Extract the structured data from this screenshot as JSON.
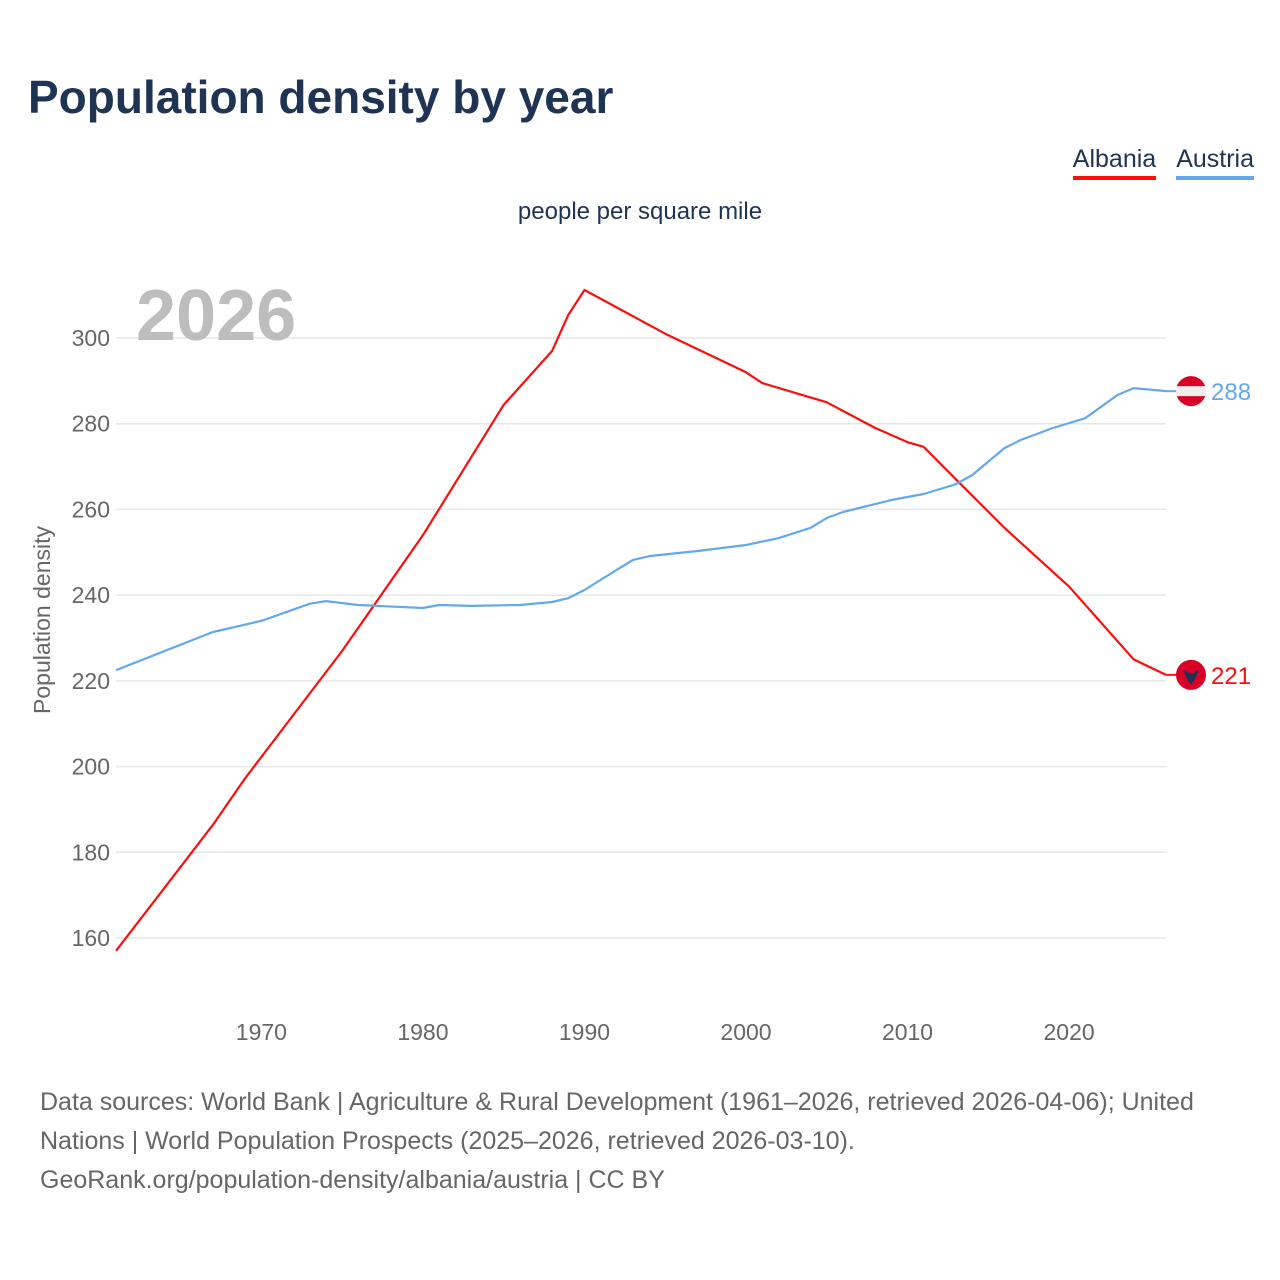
{
  "title": "Population density by year",
  "subtitle": "people per square mile",
  "legend": [
    {
      "label": "Albania",
      "color": "#ff0d0d"
    },
    {
      "label": "Austria",
      "color": "#64a8ec"
    }
  ],
  "year_watermark": "2026",
  "source_line1": "Data sources: World Bank | Agriculture & Rural Development (1961–2026, retrieved 2026-04-06); United Nations | World Population Prospects (2025–2026, retrieved 2026-03-10).",
  "source_line2": "GeoRank.org/population-density/albania/austria | CC BY",
  "chart_data": {
    "type": "line",
    "title": "Population density by year",
    "xlabel": "",
    "ylabel": "Population density",
    "xlim": [
      1961,
      2026
    ],
    "ylim": [
      150,
      315
    ],
    "xticks": [
      1970,
      1980,
      1990,
      2000,
      2010,
      2020
    ],
    "yticks": [
      160,
      180,
      200,
      220,
      240,
      260,
      280,
      300
    ],
    "grid": true,
    "legend_placement": "top-right",
    "series": [
      {
        "name": "Albania",
        "color": "#ff0d0d",
        "end_label": "221",
        "x": [
          1961,
          1967,
          1969,
          1975,
          1980,
          1985,
          1988,
          1989,
          1990,
          1995,
          2000,
          2001,
          2005,
          2008,
          2010,
          2011,
          2013,
          2016,
          2020,
          2024,
          2026
        ],
        "y": [
          157,
          186.4,
          197.3,
          227,
          254,
          284.4,
          297,
          305.4,
          311.2,
          301,
          292,
          289.5,
          285,
          279,
          275.7,
          274.6,
          267,
          255.7,
          242,
          225,
          221.4
        ]
      },
      {
        "name": "Austria",
        "color": "#64a8ec",
        "end_label": "288",
        "x": [
          1961,
          1967,
          1970,
          1973,
          1974,
          1976,
          1980,
          1981,
          1983,
          1986,
          1988,
          1989,
          1990,
          1992,
          1993,
          1994,
          1997,
          2000,
          2002,
          2004,
          2005,
          2006,
          2009,
          2011,
          2013,
          2014,
          2016,
          2017,
          2019,
          2021,
          2023,
          2024,
          2026
        ],
        "y": [
          222.5,
          231.4,
          234,
          238,
          238.6,
          237.7,
          237,
          237.7,
          237.5,
          237.7,
          238.4,
          239.3,
          241.2,
          245.9,
          248.2,
          249.1,
          250.3,
          251.7,
          253.3,
          255.7,
          258,
          259.4,
          262.2,
          263.6,
          265.9,
          268,
          274.3,
          276.2,
          279,
          281.3,
          286.7,
          288.3,
          287.6
        ]
      }
    ]
  }
}
